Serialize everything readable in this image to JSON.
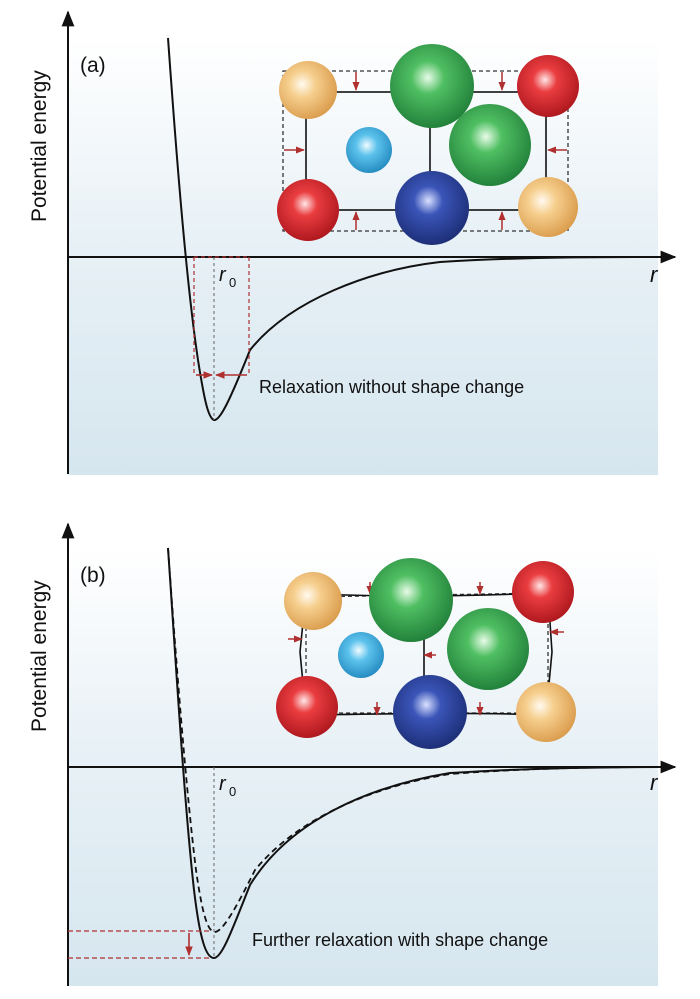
{
  "panels": [
    {
      "id": "a",
      "label": "(a)",
      "y_axis_label": "Potential energy",
      "x_axis_label": "r",
      "r0_label": "r",
      "r0_subscript": "0",
      "annotation": "Relaxation without shape change"
    },
    {
      "id": "b",
      "label": "(b)",
      "y_axis_label": "Potential energy",
      "x_axis_label": "r",
      "r0_label": "r",
      "r0_subscript": "0",
      "annotation": "Further relaxation with shape change"
    }
  ],
  "colors": {
    "background_top": "#ffffff",
    "background_bottom": "#dbe9f1",
    "curve": "#111111",
    "arrow_red": "#b03030",
    "atom_orange": "#f2c27a",
    "atom_green": "#2e9a4a",
    "atom_red": "#d8242c",
    "atom_blue_dark": "#283c8f",
    "atom_blue_light": "#3aa4d8"
  }
}
